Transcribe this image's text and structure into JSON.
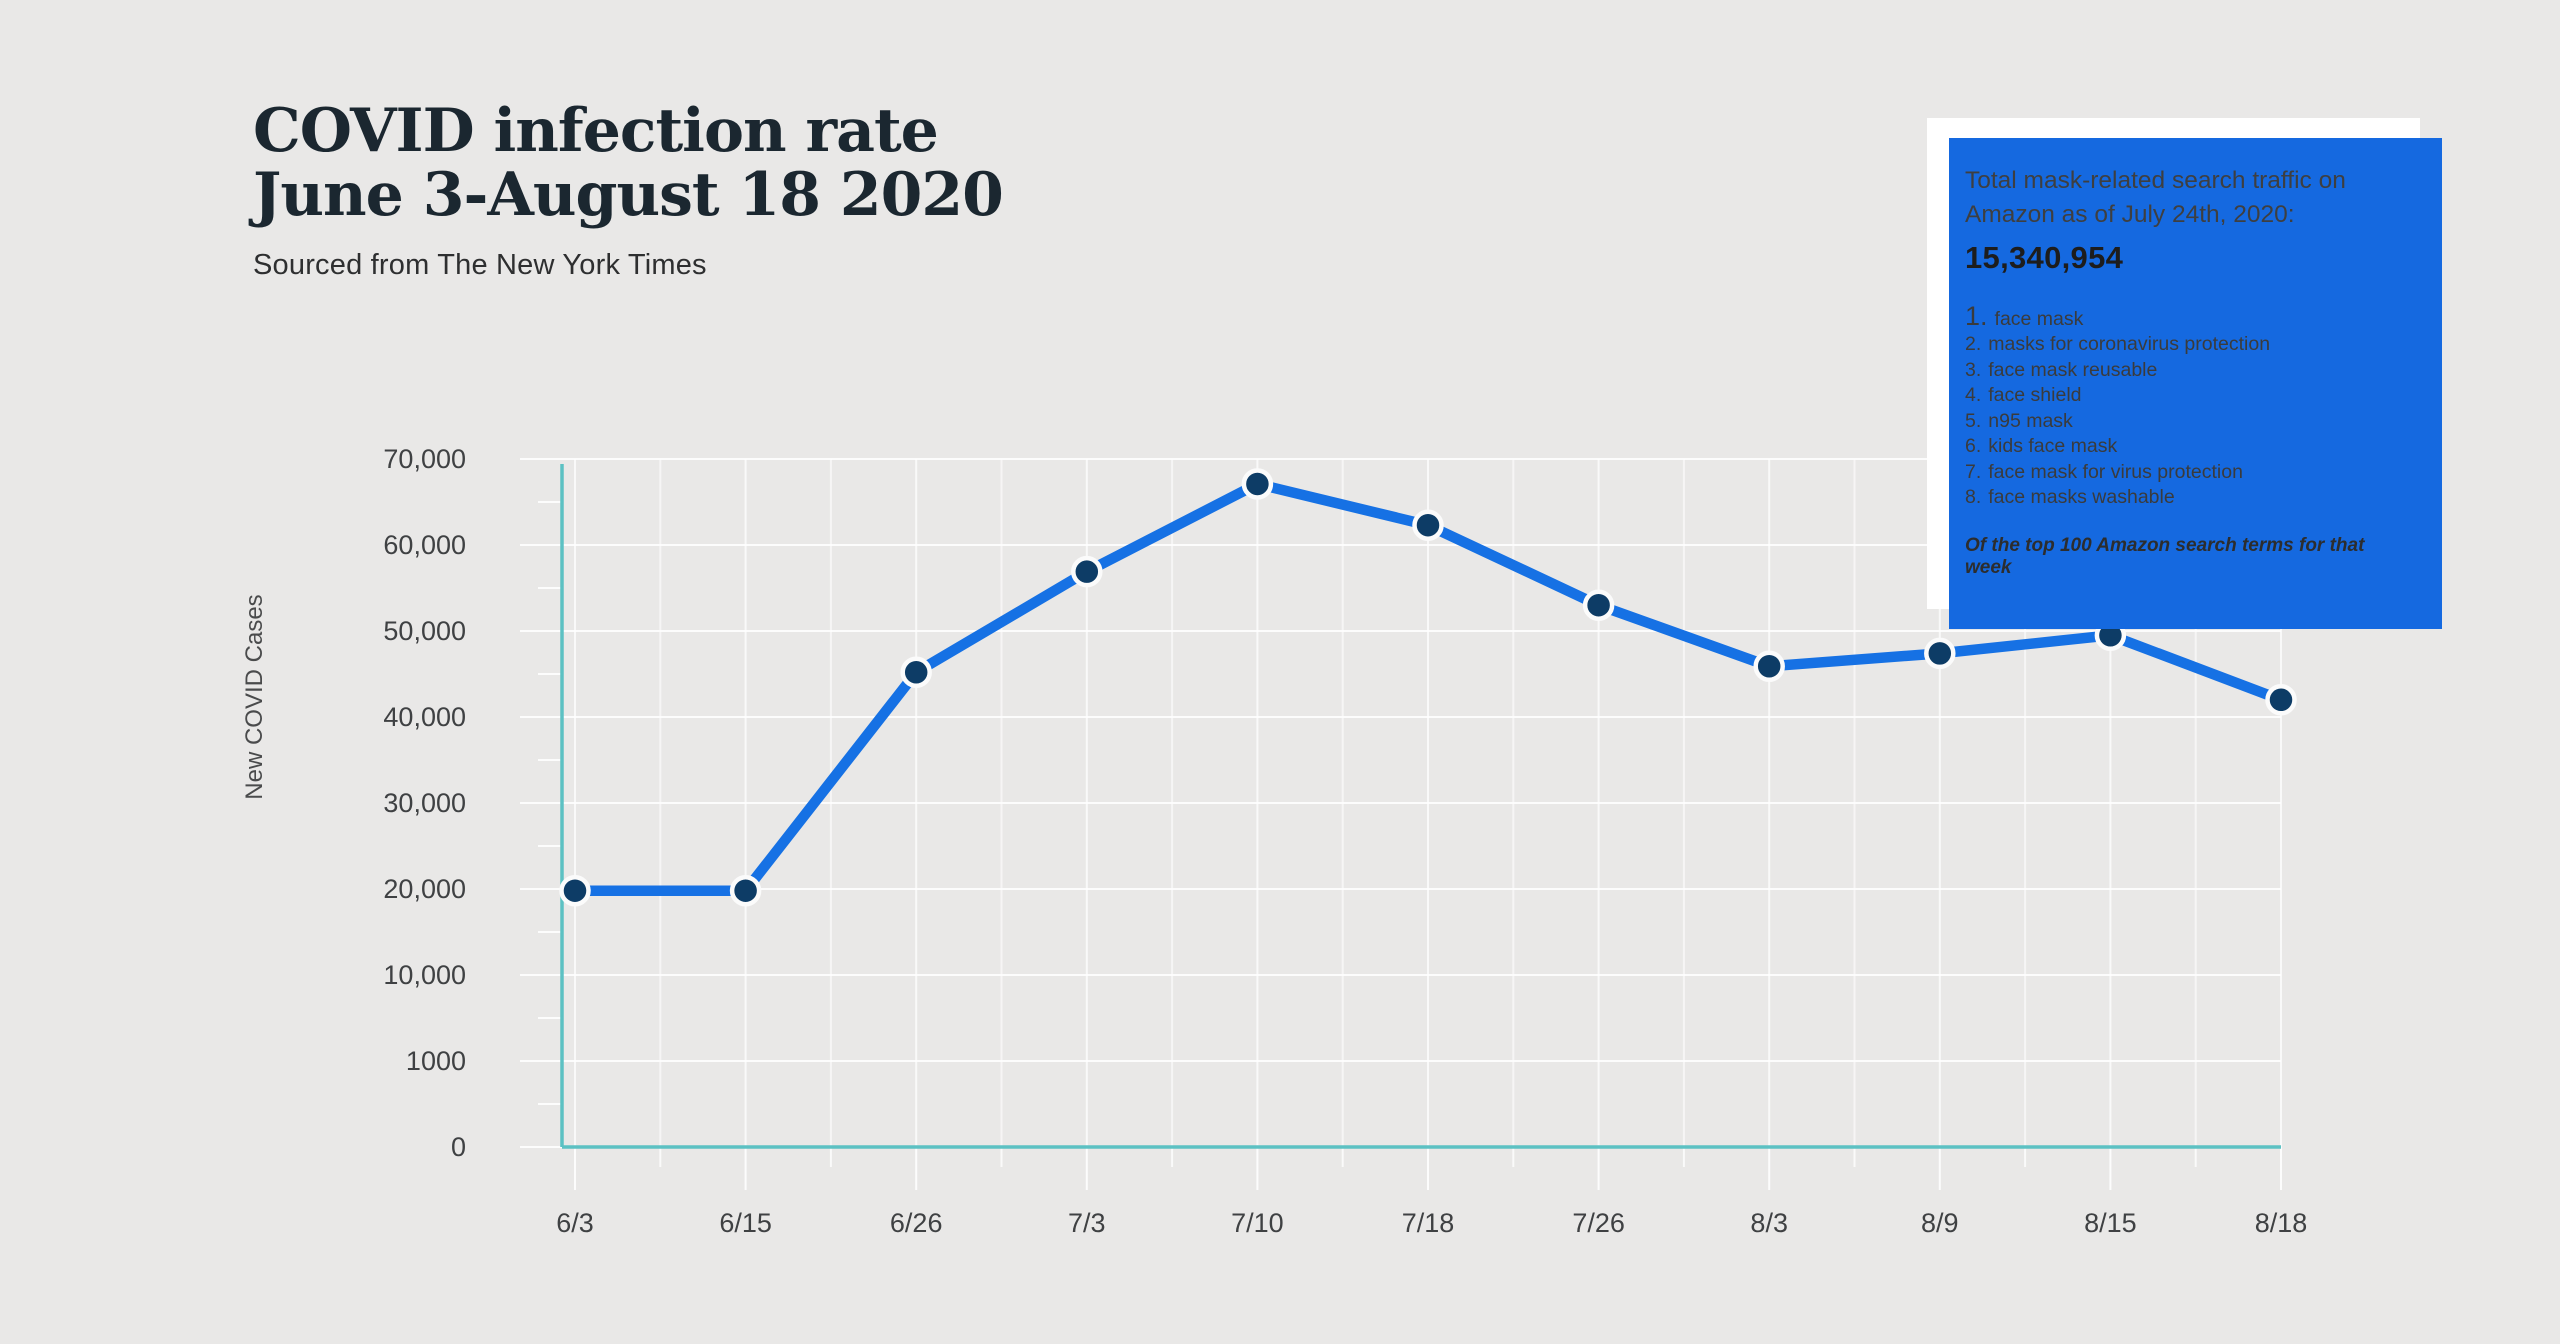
{
  "theme": {
    "background": "#e9e8e7",
    "accent_blue": "#1569e0",
    "line_blue": "#1671e4",
    "dot_navy": "#0d3c66",
    "axis_teal": "#5cc1c3",
    "gridline_white": "#ffffff",
    "tick_label_color": "#3f4143",
    "axis_title_color": "#4a4b4c"
  },
  "header": {
    "title_line1": "COVID infection rate",
    "title_line2": "June 3-August 18 2020",
    "subtitle": "Sourced from The New York Times"
  },
  "callout": {
    "intro": "Total mask-related search traffic on Amazon as of July 24th, 2020:",
    "total": "15,340,954",
    "items": [
      {
        "num": "1.",
        "text": "face mask"
      },
      {
        "num": "2.",
        "text": "masks for coronavirus protection"
      },
      {
        "num": "3.",
        "text": "face mask reusable"
      },
      {
        "num": "4.",
        "text": "face shield"
      },
      {
        "num": "5.",
        "text": "n95 mask"
      },
      {
        "num": "6.",
        "text": "kids face mask"
      },
      {
        "num": "7.",
        "text": "face mask for virus protection"
      },
      {
        "num": "8.",
        "text": "face masks washable"
      }
    ],
    "footnote": "Of the top 100 Amazon search terms for that week"
  },
  "chart_data": {
    "type": "line",
    "title": "COVID infection rate June 3-August 18 2020",
    "subtitle": "Sourced from The New York Times",
    "xlabel": "",
    "ylabel": "New COVID Cases",
    "categories": [
      "6/3",
      "6/15",
      "6/26",
      "7/3",
      "7/10",
      "7/18",
      "7/26",
      "8/3",
      "8/9",
      "8/15",
      "8/18"
    ],
    "values": [
      19800,
      19800,
      45200,
      56900,
      67100,
      62300,
      53000,
      45900,
      47400,
      49500,
      42000
    ],
    "y_ticks": [
      {
        "value": 0,
        "label": "0"
      },
      {
        "value": 1000,
        "label": "1000"
      },
      {
        "value": 10000,
        "label": "10,000"
      },
      {
        "value": 20000,
        "label": "20,000"
      },
      {
        "value": 30000,
        "label": "30,000"
      },
      {
        "value": 40000,
        "label": "40,000"
      },
      {
        "value": 50000,
        "label": "50,000"
      },
      {
        "value": 60000,
        "label": "60,000"
      },
      {
        "value": 70000,
        "label": "70,000"
      }
    ],
    "grid": true,
    "legend": "none",
    "note": "y axis ticks are evenly spaced even though 0 / 1000 / 10,000 are not proportional"
  }
}
